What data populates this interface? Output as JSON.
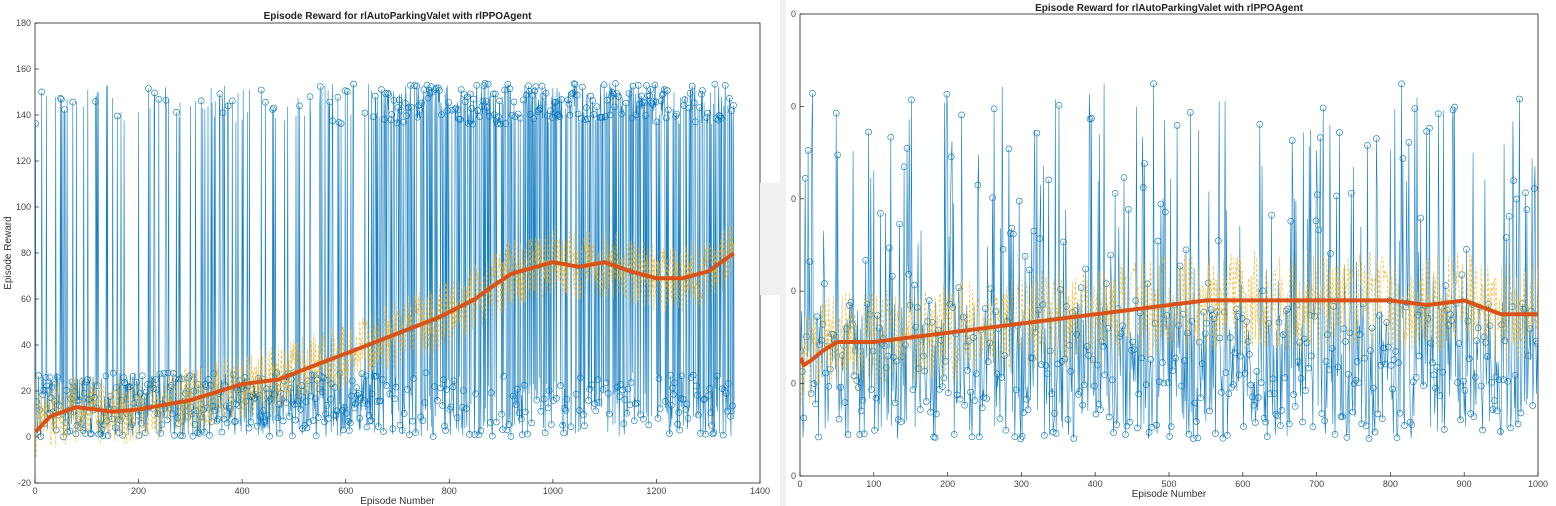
{
  "colors": {
    "episode_reward": "#0072BD",
    "average_reward": "#D95319",
    "episode_q0": "#EDB120",
    "axis": "#222222"
  },
  "chart_data": [
    {
      "type": "line",
      "title": "Episode Reward for rlAutoParkingValet with rlPPOAgent",
      "xlabel": "Episode Number",
      "ylabel": "Episode Reward",
      "xlim": [
        0,
        1400
      ],
      "ylim": [
        -20,
        180
      ],
      "xticks": [
        0,
        200,
        400,
        600,
        800,
        1000,
        1200,
        1400
      ],
      "yticks": [
        -20,
        0,
        20,
        40,
        60,
        80,
        100,
        120,
        140,
        160,
        180
      ],
      "xtick_labels": [
        "0",
        "200",
        "400",
        "600",
        "800",
        "1000",
        "1200",
        "1400"
      ],
      "ytick_labels": [
        "-20",
        "0",
        "20",
        "40",
        "60",
        "80",
        "100",
        "120",
        "140",
        "160",
        "180"
      ],
      "episodes": 1350,
      "average_reward": {
        "x": [
          0,
          30,
          80,
          150,
          200,
          300,
          400,
          470,
          550,
          620,
          700,
          780,
          850,
          880,
          920,
          1000,
          1050,
          1100,
          1150,
          1200,
          1250,
          1300,
          1350
        ],
        "y": [
          2,
          9,
          13,
          11,
          12,
          16,
          23,
          25,
          32,
          38,
          45,
          52,
          60,
          65,
          71,
          76,
          74,
          76,
          72,
          69,
          69,
          72,
          80
        ]
      },
      "episode_reward_spike_rate": [
        {
          "x_from": 0,
          "x_to": 650,
          "high_prob": 0.15
        },
        {
          "x_from": 650,
          "x_to": 1350,
          "high_prob": 0.55
        }
      ]
    },
    {
      "type": "line",
      "title": "Episode Reward for rlAutoParkingValet with rlPPOAgent",
      "xlabel": "Episode Number",
      "ylabel": "",
      "xlim": [
        0,
        1000
      ],
      "ylim": [
        0,
        100
      ],
      "xticks": [
        0,
        100,
        200,
        300,
        400,
        500,
        600,
        700,
        800,
        900,
        1000
      ],
      "yticks": [
        0,
        20,
        40,
        60,
        80,
        100
      ],
      "xtick_labels": [
        "0",
        "100",
        "200",
        "300",
        "400",
        "500",
        "600",
        "700",
        "800",
        "900",
        "1000"
      ],
      "ytick_labels": [
        "0",
        "0",
        "0",
        "0",
        "0",
        "0"
      ],
      "episodes": 1000,
      "average_reward": {
        "x": [
          0,
          5,
          15,
          30,
          50,
          100,
          200,
          300,
          400,
          500,
          550,
          600,
          700,
          800,
          850,
          900,
          950,
          1000
        ],
        "y": [
          26,
          24,
          25,
          27,
          29,
          29,
          31,
          33,
          35,
          37,
          38,
          38,
          38,
          38,
          37,
          38,
          35,
          35
        ]
      },
      "episode_reward_spike_rate": [
        {
          "x_from": 0,
          "x_to": 1000,
          "high_prob": 0.18
        }
      ]
    }
  ]
}
